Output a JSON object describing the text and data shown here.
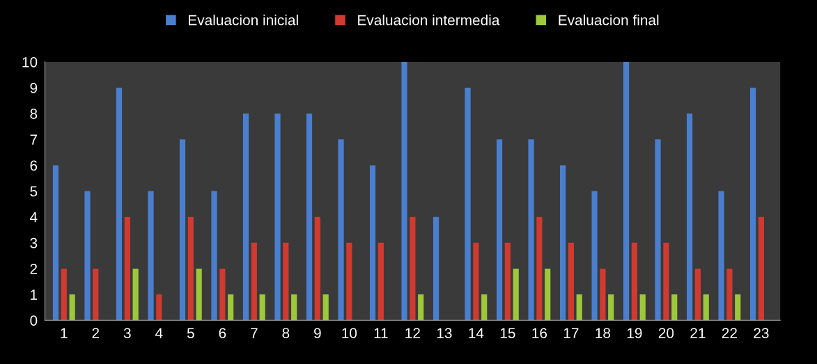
{
  "chart_data": {
    "type": "bar",
    "categories": [
      "1",
      "2",
      "3",
      "4",
      "5",
      "6",
      "7",
      "8",
      "9",
      "10",
      "11",
      "12",
      "13",
      "14",
      "15",
      "16",
      "17",
      "18",
      "19",
      "20",
      "21",
      "22",
      "23"
    ],
    "series": [
      {
        "name": "Evaluacion inicial",
        "color": "#4a7fd0",
        "values": [
          6,
          5,
          9,
          5,
          7,
          5,
          8,
          8,
          8,
          7,
          6,
          10,
          4,
          9,
          7,
          7,
          6,
          5,
          10,
          7,
          8,
          5,
          9
        ]
      },
      {
        "name": "Evaluacion intermedia",
        "color": "#d03a30",
        "values": [
          2,
          2,
          4,
          1,
          4,
          2,
          3,
          3,
          4,
          3,
          3,
          4,
          0,
          3,
          3,
          4,
          3,
          2,
          3,
          3,
          2,
          2,
          4
        ]
      },
      {
        "name": "Evaluacion final",
        "color": "#9cc83a",
        "values": [
          1,
          0,
          2,
          0,
          2,
          1,
          1,
          1,
          1,
          0,
          0,
          1,
          0,
          1,
          2,
          2,
          1,
          1,
          1,
          1,
          1,
          1,
          0
        ]
      }
    ],
    "ylim": [
      0,
      10
    ],
    "yticks": [
      0,
      1,
      2,
      3,
      4,
      5,
      6,
      7,
      8,
      9,
      10
    ],
    "grid": false,
    "legend": "top"
  }
}
